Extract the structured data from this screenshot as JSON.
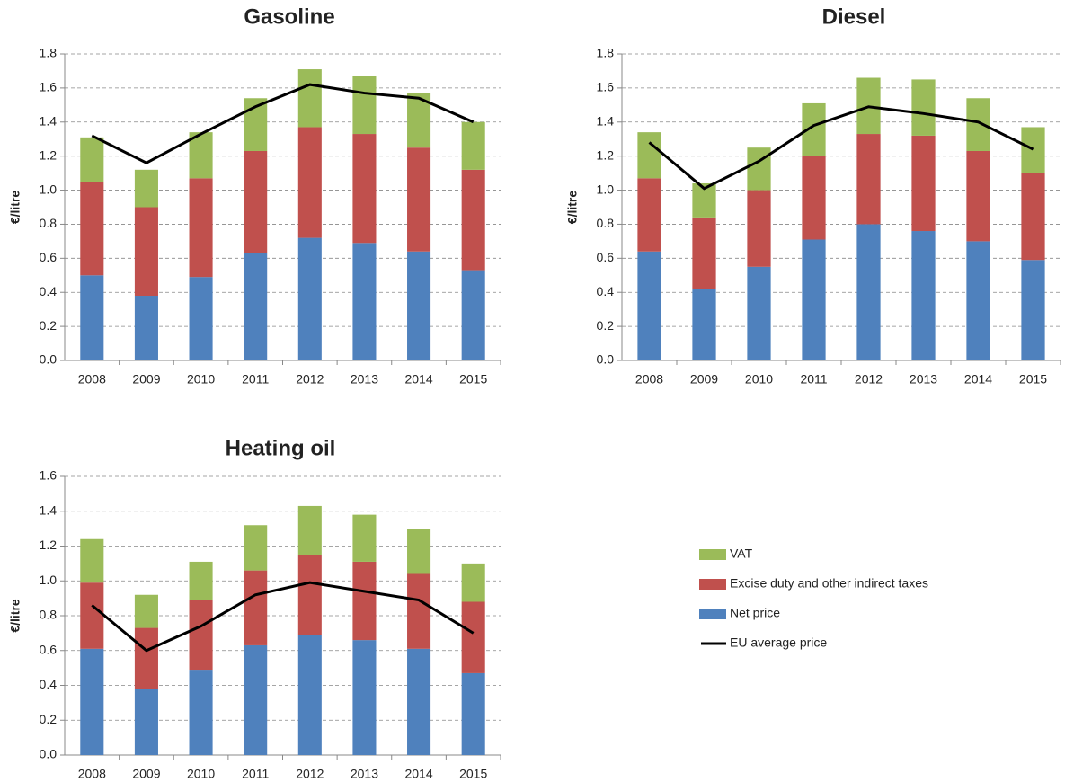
{
  "chart_data": [
    {
      "type": "bar",
      "stacked": true,
      "title": "Gasoline",
      "y_label": "€/litre",
      "categories": [
        "2008",
        "2009",
        "2010",
        "2011",
        "2012",
        "2013",
        "2014",
        "2015"
      ],
      "ylim": [
        0,
        1.8
      ],
      "yticks": [
        {
          "value": 0,
          "label": "0.0"
        },
        0.2,
        0.4,
        0.6,
        0.8,
        {
          "value": 1,
          "label": "1.0"
        },
        1.2,
        1.4,
        1.6,
        1.8
      ],
      "grid": true,
      "series": [
        {
          "name": "Net price",
          "color": "#4f81bd",
          "values": [
            0.5,
            0.38,
            0.49,
            0.63,
            0.72,
            0.69,
            0.64,
            0.53
          ]
        },
        {
          "name": "Excise duty and other indirect taxes",
          "color": "#c0504d",
          "values": [
            0.55,
            0.52,
            0.58,
            0.6,
            0.65,
            0.64,
            0.61,
            0.59
          ]
        },
        {
          "name": "VAT",
          "color": "#9bbb59",
          "values": [
            0.26,
            0.22,
            0.27,
            0.31,
            0.34,
            0.34,
            0.32,
            0.28
          ]
        },
        {
          "name": "EU average price",
          "color": "#000000",
          "type": "line",
          "values": [
            1.32,
            1.16,
            1.33,
            1.49,
            1.62,
            1.57,
            1.54,
            1.4
          ]
        }
      ]
    },
    {
      "type": "bar",
      "stacked": true,
      "title": "Diesel",
      "y_label": "€/litre",
      "categories": [
        "2008",
        "2009",
        "2010",
        "2011",
        "2012",
        "2013",
        "2014",
        "2015"
      ],
      "ylim": [
        0,
        1.8
      ],
      "yticks": [
        {
          "value": 0,
          "label": "0.0"
        },
        0.2,
        0.4,
        0.6,
        0.8,
        {
          "value": 1,
          "label": "1.0"
        },
        1.2,
        1.4,
        1.6,
        1.8
      ],
      "grid": true,
      "series": [
        {
          "name": "Net price",
          "color": "#4f81bd",
          "values": [
            0.64,
            0.42,
            0.55,
            0.71,
            0.8,
            0.76,
            0.7,
            0.59
          ]
        },
        {
          "name": "Excise duty and other indirect taxes",
          "color": "#c0504d",
          "values": [
            0.43,
            0.42,
            0.45,
            0.49,
            0.53,
            0.56,
            0.53,
            0.51
          ]
        },
        {
          "name": "VAT",
          "color": "#9bbb59",
          "values": [
            0.27,
            0.2,
            0.25,
            0.31,
            0.33,
            0.33,
            0.31,
            0.27
          ]
        },
        {
          "name": "EU average price",
          "color": "#000000",
          "type": "line",
          "values": [
            1.28,
            1.01,
            1.17,
            1.38,
            1.49,
            1.45,
            1.4,
            1.24
          ]
        }
      ]
    },
    {
      "type": "bar",
      "stacked": true,
      "title": "Heating oil",
      "y_label": "€/litre",
      "categories": [
        "2008",
        "2009",
        "2010",
        "2011",
        "2012",
        "2013",
        "2014",
        "2015"
      ],
      "ylim": [
        0,
        1.6
      ],
      "yticks": [
        {
          "value": 0,
          "label": "0.0"
        },
        0.2,
        0.4,
        0.6,
        0.8,
        {
          "value": 1,
          "label": "1.0"
        },
        1.2,
        1.4,
        1.6
      ],
      "grid": true,
      "series": [
        {
          "name": "Net price",
          "color": "#4f81bd",
          "values": [
            0.61,
            0.38,
            0.49,
            0.63,
            0.69,
            0.66,
            0.61,
            0.47
          ]
        },
        {
          "name": "Excise duty and other indirect taxes",
          "color": "#c0504d",
          "values": [
            0.38,
            0.35,
            0.4,
            0.43,
            0.46,
            0.45,
            0.43,
            0.41
          ]
        },
        {
          "name": "VAT",
          "color": "#9bbb59",
          "values": [
            0.25,
            0.19,
            0.22,
            0.26,
            0.28,
            0.27,
            0.26,
            0.22
          ]
        },
        {
          "name": "EU average price",
          "color": "#000000",
          "type": "line",
          "values": [
            0.86,
            0.6,
            0.74,
            0.92,
            0.99,
            0.94,
            0.89,
            0.7
          ]
        }
      ]
    }
  ]
}
